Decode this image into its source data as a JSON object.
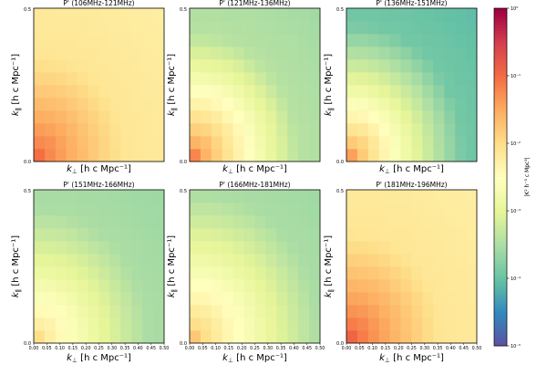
{
  "chart_data": {
    "type": "heatmap",
    "grid_size": 12,
    "scale": "log",
    "colormap": "Spectral_r",
    "panels": [
      {
        "title": "P' (106MHz-121MHz)",
        "base": -1.0,
        "slope": 0.85,
        "floor": -2.1,
        "bottom_label": false
      },
      {
        "title": "P' (121MHz-136MHz)",
        "base": -1.2,
        "slope": 1.45,
        "floor": -3.4,
        "bottom_label": false
      },
      {
        "title": "P' (136MHz-151MHz)",
        "base": -1.4,
        "slope": 1.55,
        "floor": -3.9,
        "bottom_label": false
      },
      {
        "title": "P' (151MHz-166MHz)",
        "base": -2.0,
        "slope": 0.95,
        "floor": -3.5,
        "bottom_label": true
      },
      {
        "title": "P' (166MHz-181MHz)",
        "base": -1.75,
        "slope": 1.0,
        "floor": -3.5,
        "bottom_label": true
      },
      {
        "title": "P' (181MHz-196MHz)",
        "base": -0.9,
        "slope": 0.9,
        "floor": -2.1,
        "bottom_label": true
      }
    ],
    "xlabel_main": "k",
    "xlabel_sub": "⊥",
    "xlabel_units": "[h c Mpc⁻¹]",
    "ylabel_main": "k",
    "ylabel_sub": "∥",
    "ylabel_units": "[h c Mpc⁻¹]",
    "ytick_labels": [
      "0.0",
      "0.5"
    ],
    "xtick_labels": [
      "0.00",
      "0.05",
      "0.10",
      "0.15",
      "0.20",
      "0.25",
      "0.30",
      "0.35",
      "0.40",
      "0.45",
      "0.50"
    ],
    "colorbar": {
      "label": "|K² h⁻³ c Mpc³|",
      "ticks": [
        {
          "value": 0,
          "label": "10⁰"
        },
        {
          "value": -1,
          "label": "10⁻¹"
        },
        {
          "value": -2,
          "label": "10⁻²"
        },
        {
          "value": -3,
          "label": "10⁻³"
        },
        {
          "value": -4,
          "label": "10⁻⁴"
        },
        {
          "value": -5,
          "label": "10⁻⁵"
        }
      ],
      "range": [
        -5,
        0
      ]
    },
    "colors": [
      "#5e4fa2",
      "#3288bd",
      "#66c2a5",
      "#abdda4",
      "#e6f598",
      "#ffffbf",
      "#fee08b",
      "#fdae61",
      "#f46d43",
      "#d53e4f",
      "#9e0142"
    ]
  }
}
